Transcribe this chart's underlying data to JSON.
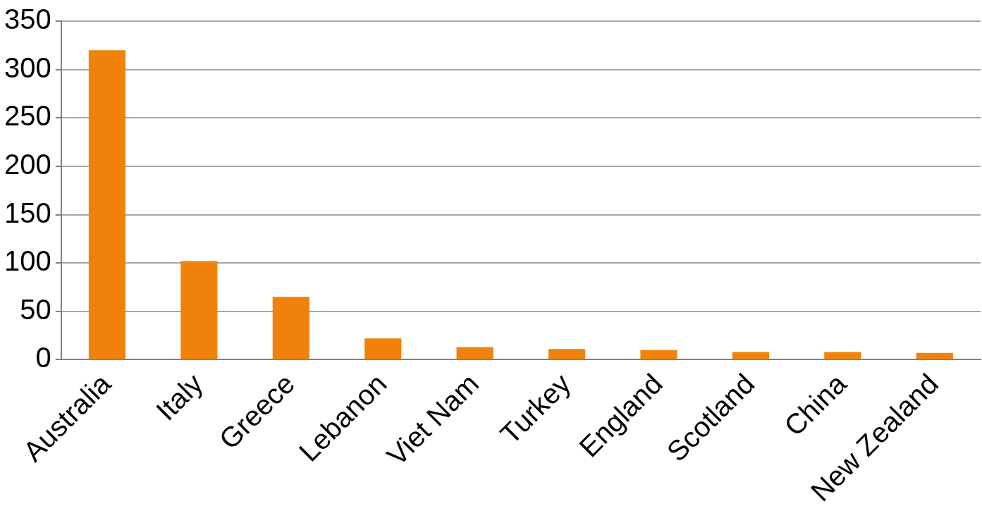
{
  "chart_data": {
    "type": "bar",
    "categories": [
      "Australia",
      "Italy",
      "Greece",
      "Lebanon",
      "Viet Nam",
      "Turkey",
      "England",
      "Scotland",
      "China",
      "New Zealand"
    ],
    "values": [
      320,
      102,
      65,
      22,
      13,
      11,
      10,
      8,
      8,
      7
    ],
    "color": "#f0820a",
    "ylim": [
      0,
      350
    ],
    "yticks": [
      0,
      50,
      100,
      150,
      200,
      250,
      300,
      350
    ],
    "grid": "y",
    "legend": false
  }
}
